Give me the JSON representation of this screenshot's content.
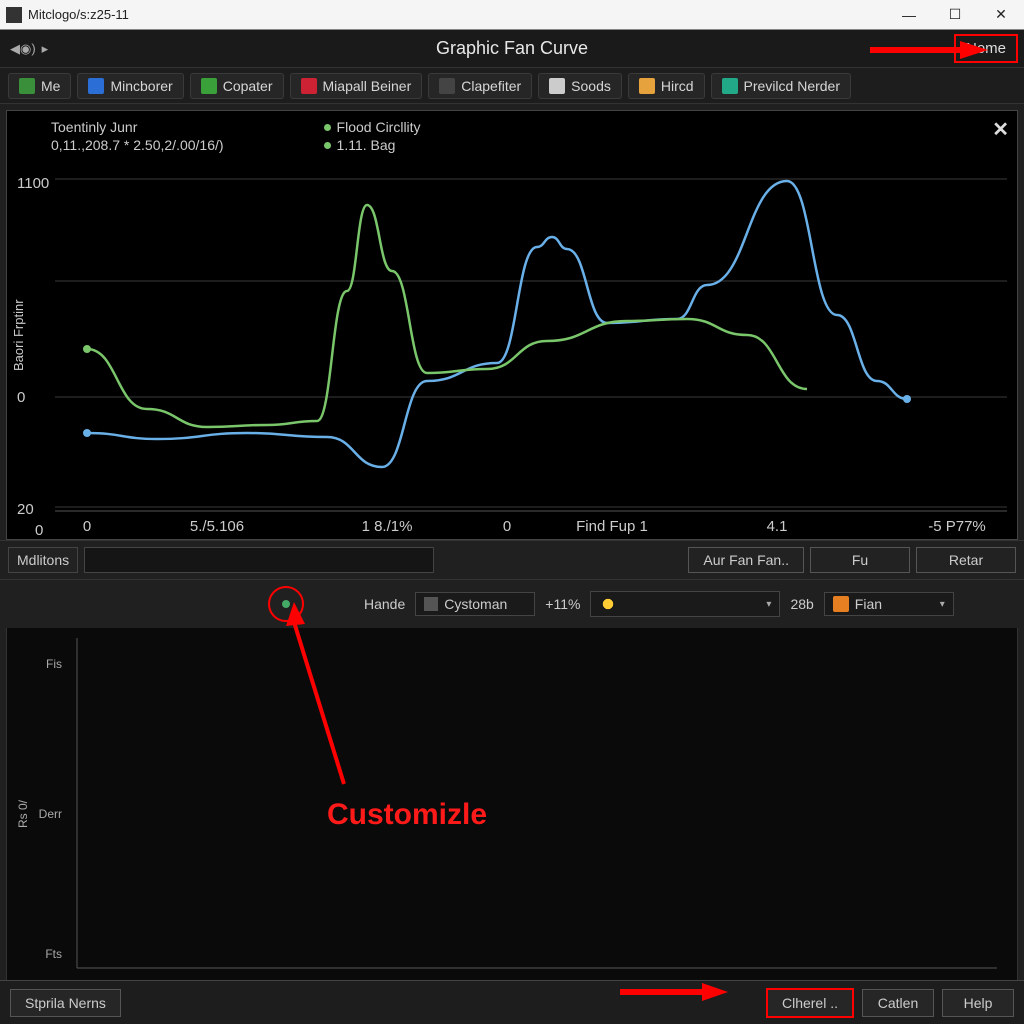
{
  "window": {
    "title": "Mitclogo/s:z25-11"
  },
  "header": {
    "page_title": "Graphic Fan Curve",
    "name_btn": "Nome"
  },
  "tabs": [
    {
      "label": "Me",
      "icon_bg": "#3a8f3a"
    },
    {
      "label": "Mincborer",
      "icon_bg": "#2b6fd6"
    },
    {
      "label": "Copater",
      "icon_bg": "#3aa03a"
    },
    {
      "label": "Miapall Beiner",
      "icon_bg": "#c23"
    },
    {
      "label": "Clapefiter",
      "icon_bg": "#444"
    },
    {
      "label": "Soods",
      "icon_bg": "#ccc"
    },
    {
      "label": "Hircd",
      "icon_bg": "#e6a23c"
    },
    {
      "label": "Previlcd Nerder",
      "icon_bg": "#2a8"
    }
  ],
  "legend": {
    "series_a_title": "Toentinly Junr",
    "series_a_sub": "0,11.,208.7 * 2.50,2/.00/16/)",
    "series_b_title": "Flood Circllity",
    "series_b_sub": "1.11. Bag",
    "colors": {
      "a": "#6ab0e8",
      "b": "#7ac66b"
    }
  },
  "chart": {
    "type": "line",
    "ylim": [
      0,
      1100
    ],
    "yticks": [
      0,
      20,
      1100
    ],
    "yticks_labels": [
      "0",
      "20",
      "1100"
    ],
    "yaxis_label": "Baori Frptinr",
    "xticks_labels": [
      "0",
      "5./5.106",
      "1 8./1%",
      "0",
      "Find Fup 1",
      "4.1",
      "-5 P77%"
    ],
    "background_color": "#000000",
    "grid_color": "#3a3a3a",
    "series": [
      {
        "name": "a",
        "color": "#6ab0e8",
        "points": [
          [
            80,
            432
          ],
          [
            150,
            438
          ],
          [
            240,
            432
          ],
          [
            320,
            436
          ],
          [
            375,
            466
          ],
          [
            420,
            380
          ],
          [
            490,
            362
          ],
          [
            530,
            246
          ],
          [
            545,
            236
          ],
          [
            560,
            248
          ],
          [
            600,
            322
          ],
          [
            670,
            318
          ],
          [
            700,
            284
          ],
          [
            780,
            180
          ],
          [
            830,
            314
          ],
          [
            870,
            380
          ],
          [
            900,
            398
          ]
        ],
        "marker_end": true
      },
      {
        "name": "b",
        "color": "#7ac66b",
        "points": [
          [
            80,
            348
          ],
          [
            140,
            408
          ],
          [
            200,
            426
          ],
          [
            260,
            424
          ],
          [
            310,
            420
          ],
          [
            340,
            290
          ],
          [
            360,
            204
          ],
          [
            385,
            270
          ],
          [
            420,
            372
          ],
          [
            480,
            368
          ],
          [
            540,
            340
          ],
          [
            620,
            320
          ],
          [
            680,
            318
          ],
          [
            740,
            334
          ],
          [
            800,
            388
          ]
        ]
      }
    ]
  },
  "controls": {
    "label": "Mdlitons",
    "btn_aur": "Aur Fan Fan..",
    "btn_fu": "Fu",
    "btn_retar": "Retar"
  },
  "settings": {
    "hande_label": "Hande",
    "cystoman": "Cystoman",
    "percent": "+11%",
    "val2": "28b",
    "fian": "Fian"
  },
  "lower": {
    "y_labels": [
      "Fis",
      "Derr",
      "Fts"
    ],
    "x_label": "Rs 0/"
  },
  "annotation": {
    "customize": "Customizle"
  },
  "bottom": {
    "left": "Stprila Nerns",
    "cherel": "Clherel ..",
    "catlen": "Catlen",
    "help": "Help"
  }
}
